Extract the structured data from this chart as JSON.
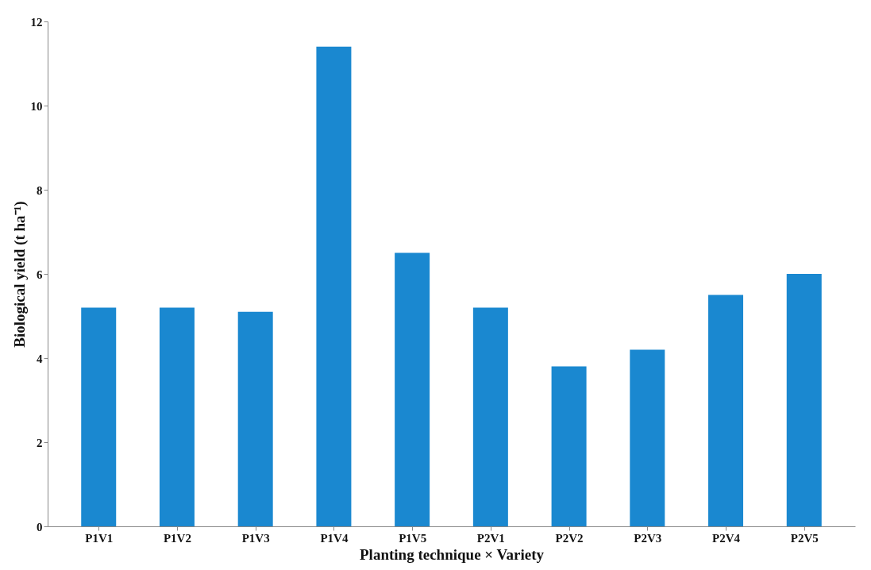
{
  "chart_data": {
    "type": "bar",
    "categories": [
      "P1V1",
      "P1V2",
      "P1V3",
      "P1V4",
      "P1V5",
      "P2V1",
      "P2V2",
      "P2V3",
      "P2V4",
      "P2V5"
    ],
    "values": [
      5.2,
      5.2,
      5.1,
      11.4,
      6.5,
      5.2,
      3.8,
      4.2,
      5.5,
      6.0
    ],
    "color": "#1a88d0",
    "xlabel": "Planting technique × Variety",
    "ylabel": "Biological yield (t ha⁻¹)",
    "ylim": [
      0,
      12
    ],
    "yticks": [
      0,
      2,
      4,
      6,
      8,
      10,
      12
    ],
    "grid": false
  }
}
